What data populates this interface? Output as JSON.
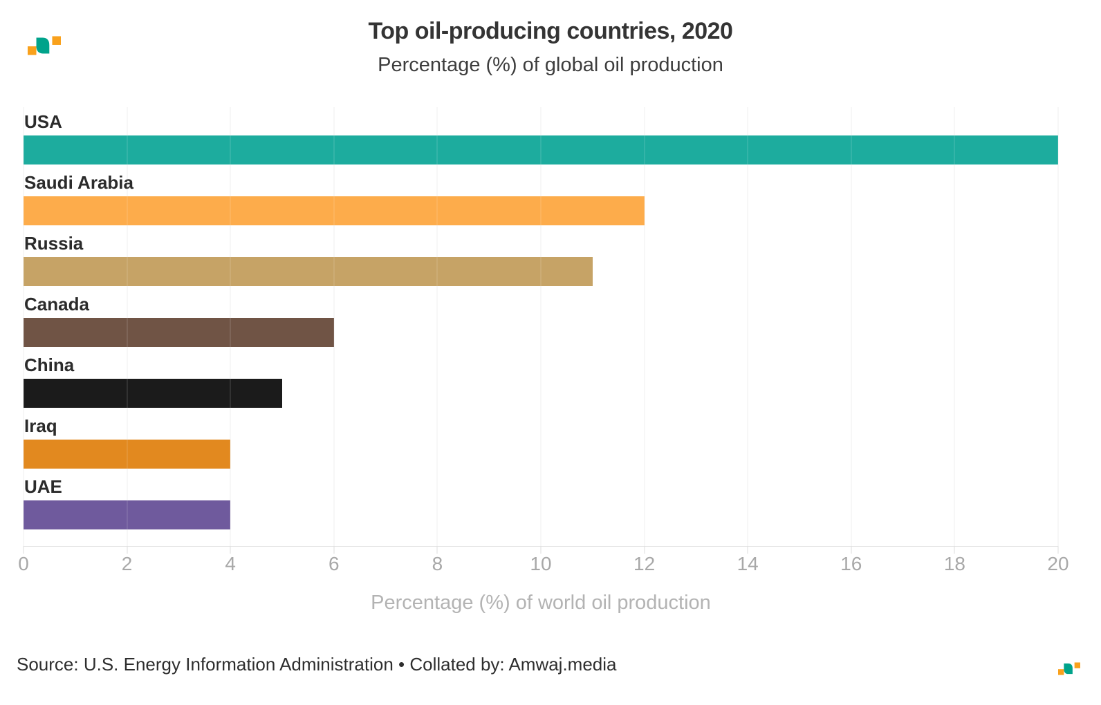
{
  "header": {
    "title": "Top oil-producing countries, 2020",
    "subtitle": "Percentage (%) of global oil production"
  },
  "chart_data": {
    "type": "bar",
    "orientation": "horizontal",
    "categories": [
      "USA",
      "Saudi Arabia",
      "Russia",
      "Canada",
      "China",
      "Iraq",
      "UAE"
    ],
    "values": [
      20,
      12,
      11,
      6,
      5,
      4,
      4
    ],
    "bar_colors": [
      "#1dac9e",
      "#fdac4b",
      "#c6a366",
      "#705445",
      "#1b1b1b",
      "#e2891f",
      "#6f5a9d"
    ],
    "title": "Top oil-producing countries, 2020",
    "subtitle": "Percentage (%) of global oil production",
    "xlabel": "Percentage (%) of world oil production",
    "ylabel": "",
    "xlim": [
      0,
      20
    ],
    "xticks": [
      0,
      2,
      4,
      6,
      8,
      10,
      12,
      14,
      16,
      18,
      20
    ],
    "grid": "vertical",
    "legend": "none"
  },
  "footer": {
    "source": "Source: U.S. Energy Information Administration • Collated by: Amwaj.media"
  },
  "branding": {
    "logo_name": "amwaj-media-logo",
    "orange": "#f9a11c",
    "teal": "#00a38b"
  }
}
